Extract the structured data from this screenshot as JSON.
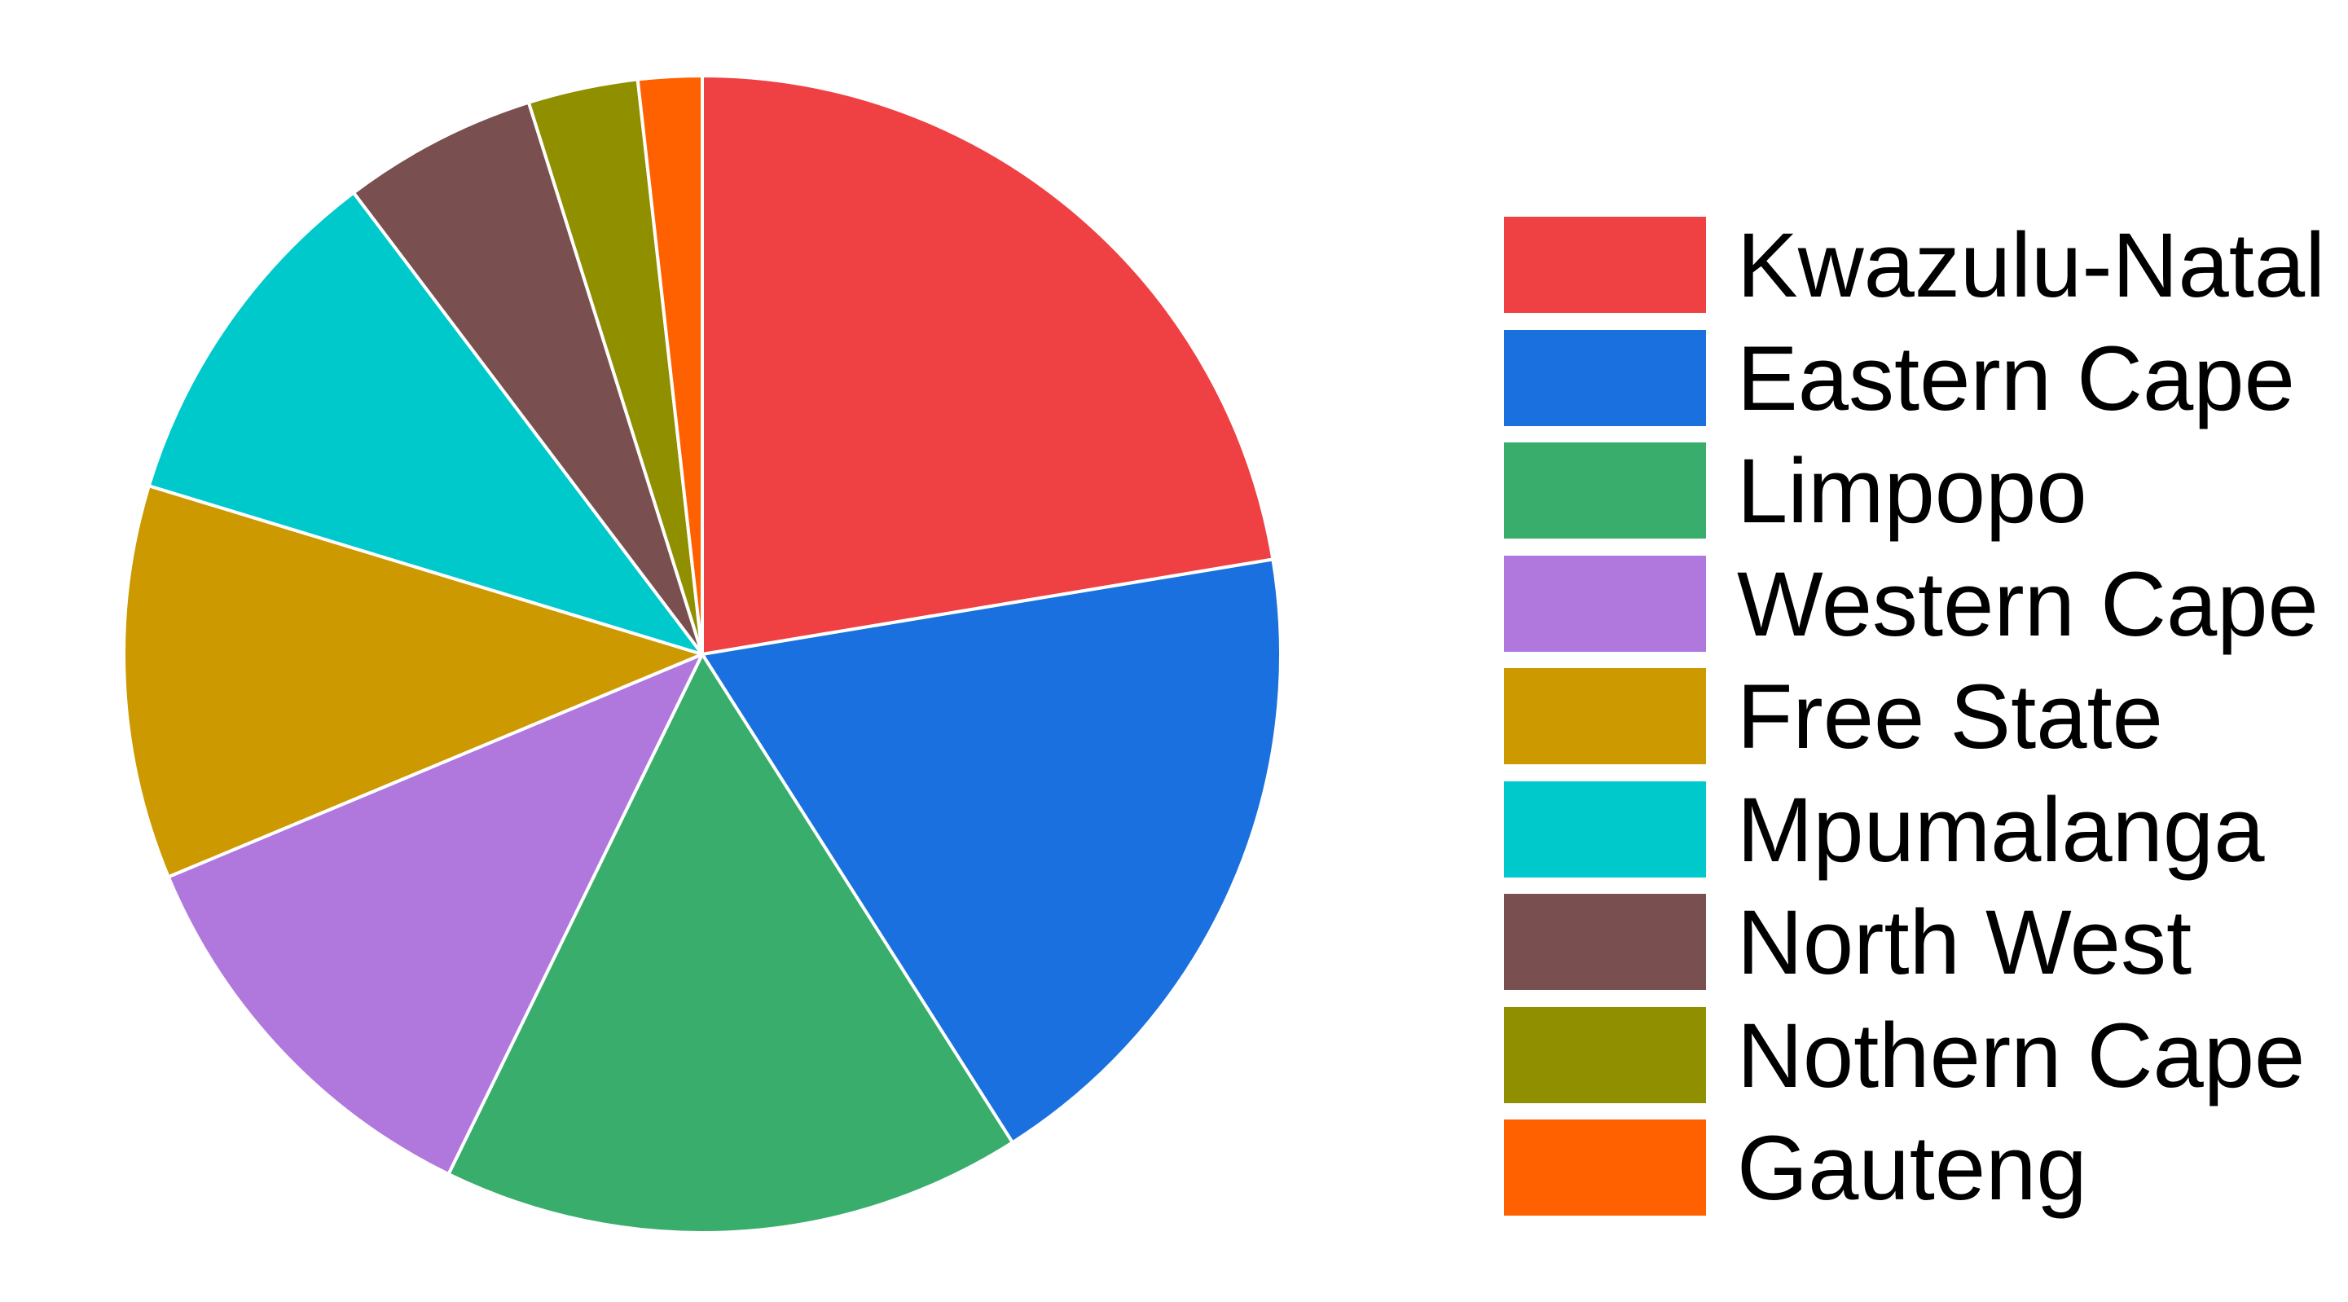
{
  "chart_data": {
    "type": "pie",
    "title": "",
    "legend_position": "right",
    "start_angle": "12 o'clock",
    "direction": "clockwise",
    "slice_border_color": "#ffffff",
    "slices": [
      {
        "label": "Kwazulu-Natal",
        "value": 22.6,
        "color": "#ef4043"
      },
      {
        "label": "Eastern Cape",
        "value": 18.8,
        "color": "#1a70de"
      },
      {
        "label": "Limpopo",
        "value": 16.4,
        "color": "#38ad6c"
      },
      {
        "label": "Western Cape",
        "value": 11.6,
        "color": "#b078dd"
      },
      {
        "label": "Free State",
        "value": 11.1,
        "color": "#cc9900"
      },
      {
        "label": "Mpumalanga",
        "value": 10.1,
        "color": "#00c9cc"
      },
      {
        "label": "North West",
        "value": 5.5,
        "color": "#7a4f4f"
      },
      {
        "label": "Nothern Cape",
        "value": 3.1,
        "color": "#8f8f00"
      },
      {
        "label": "Gauteng",
        "value": 1.8,
        "color": "#ff6100"
      }
    ]
  }
}
